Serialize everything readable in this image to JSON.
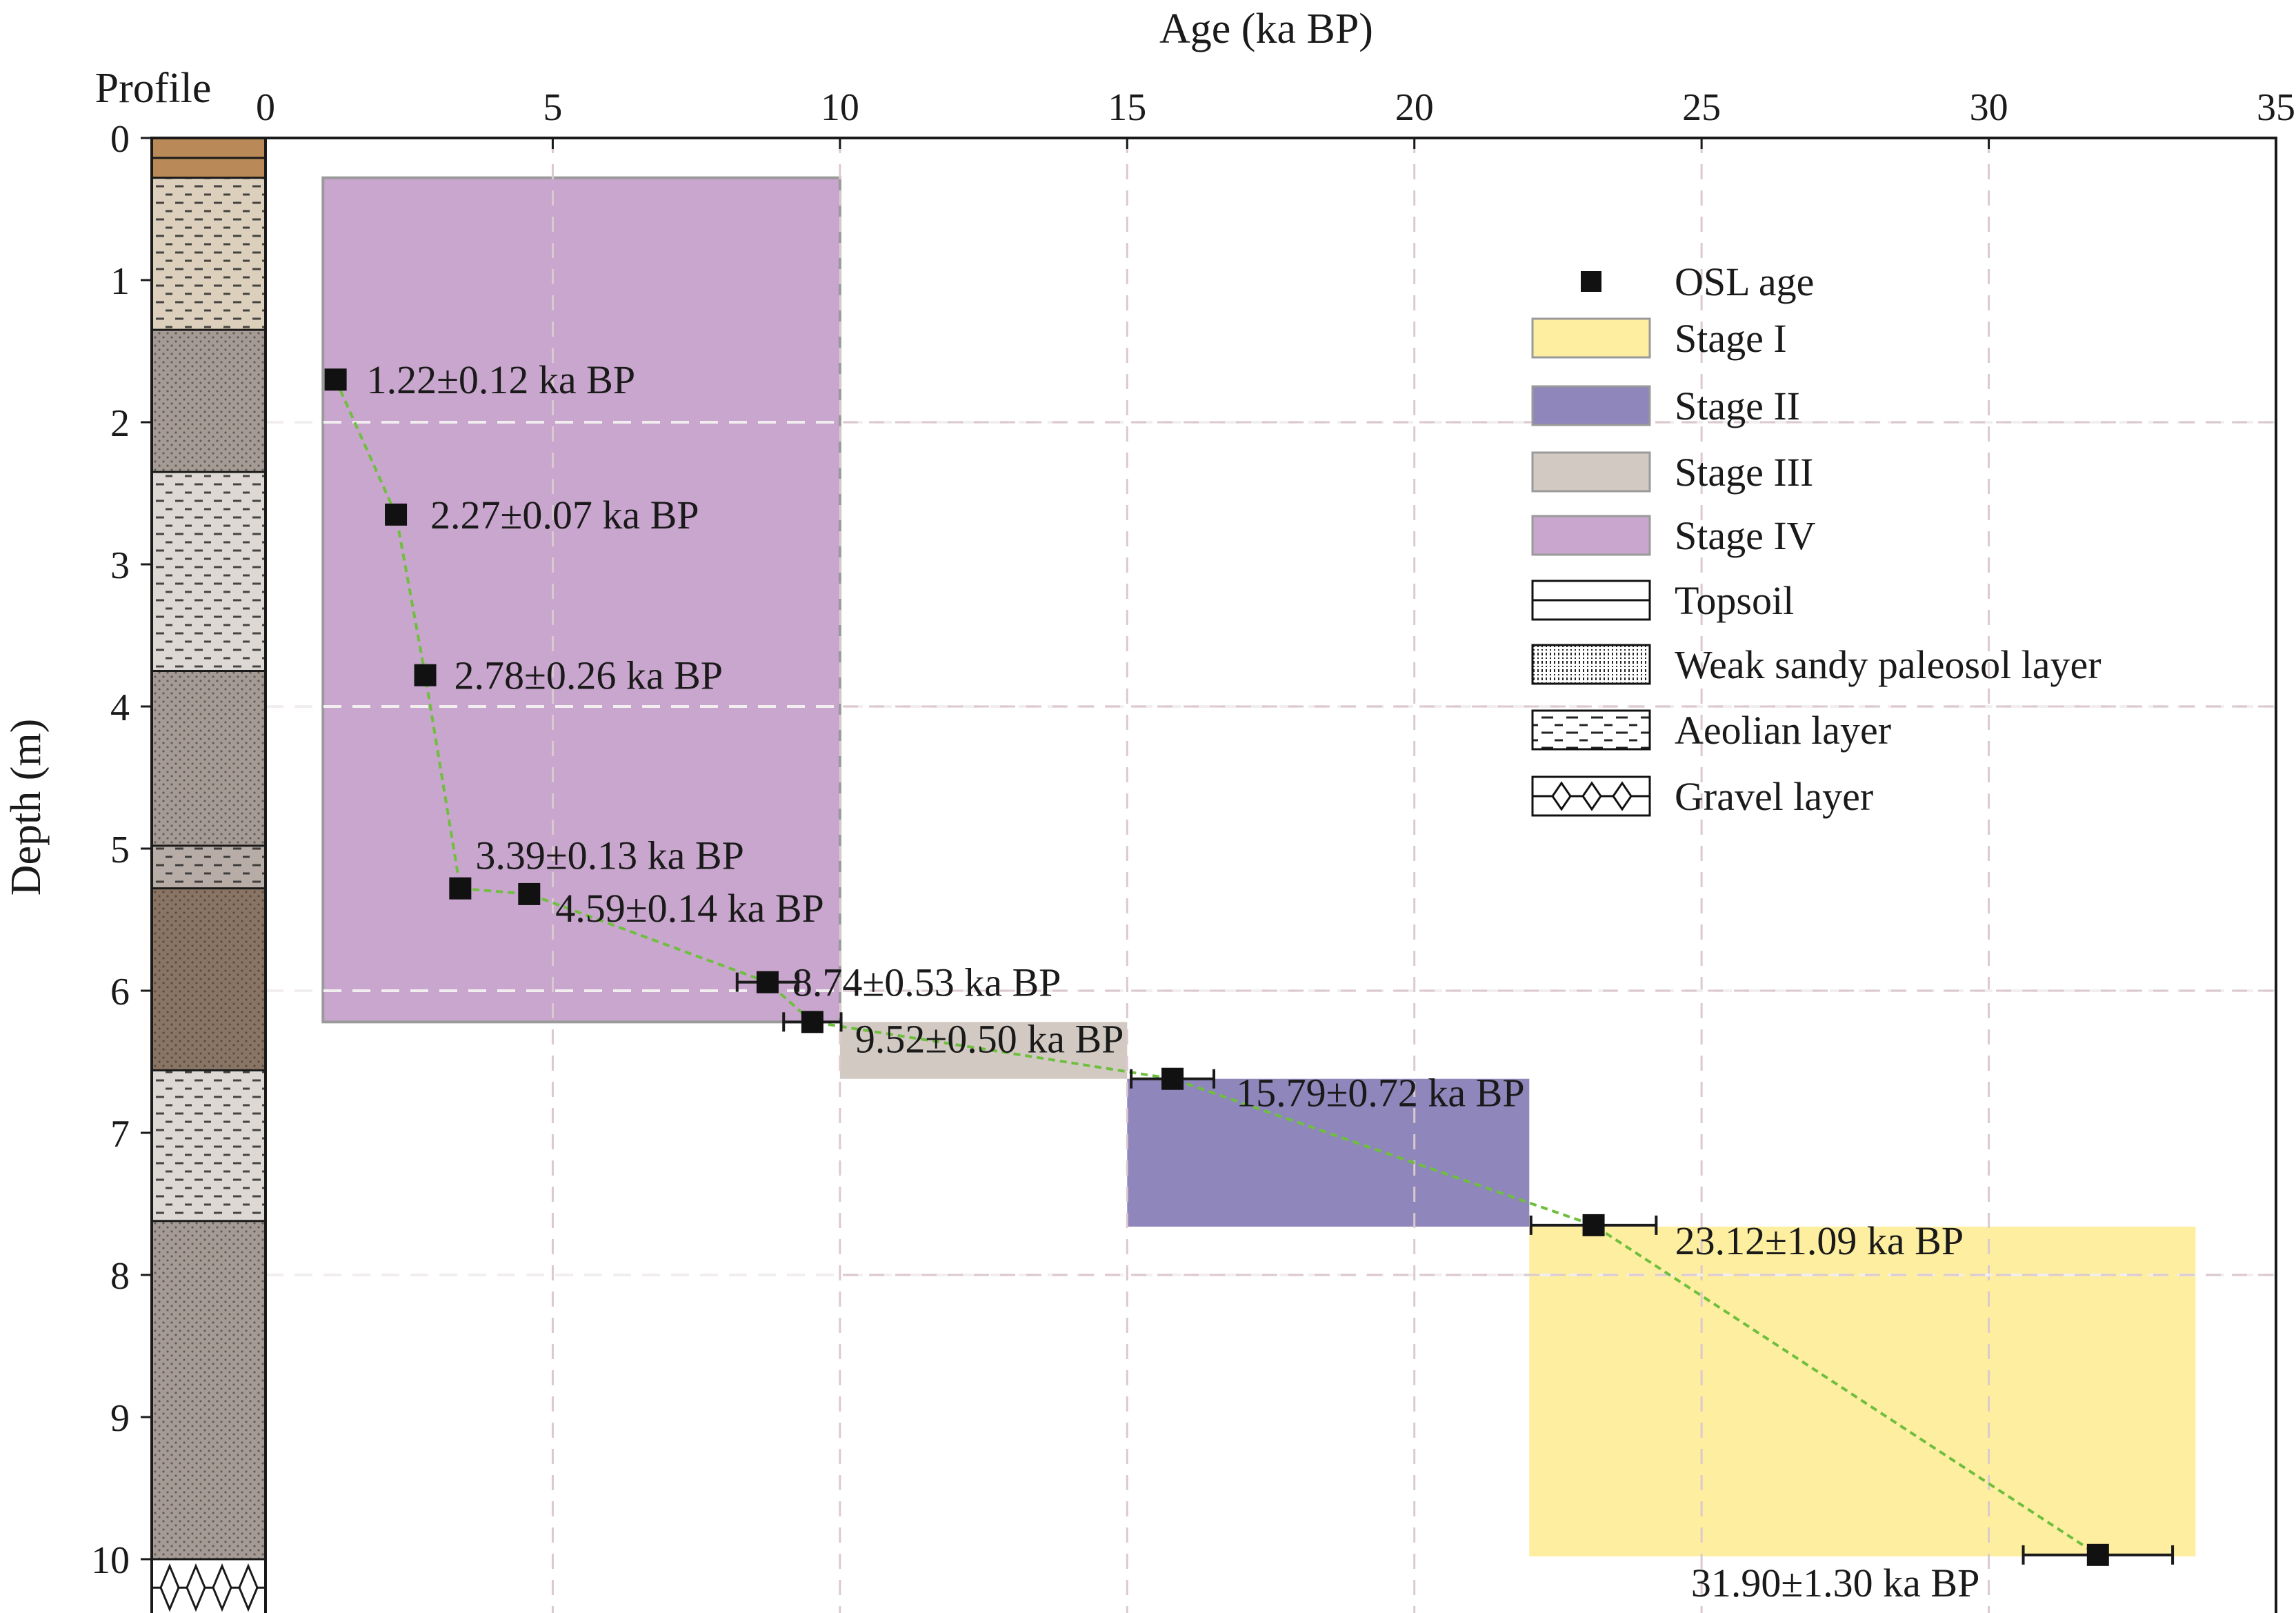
{
  "chart_data": {
    "type": "scatter",
    "title": "",
    "xlabel": "Age (ka BP)",
    "ylabel": "Depth (m)",
    "profile_label": "Profile",
    "xlim": [
      0,
      35
    ],
    "ylim": [
      0,
      10.4
    ],
    "xticks": [
      0,
      5,
      10,
      15,
      20,
      25,
      30,
      35
    ],
    "yticks": [
      0,
      1,
      2,
      3,
      4,
      5,
      6,
      7,
      8,
      9,
      10
    ],
    "grid": true,
    "legend_position": "top-right",
    "series": [
      {
        "name": "OSL age",
        "color": "#111111",
        "line_color": "#6fbf3f",
        "points": [
          {
            "age": 1.22,
            "err": 0.12,
            "depth": 1.7,
            "label": "1.22±0.12 ka BP"
          },
          {
            "age": 2.27,
            "err": 0.07,
            "depth": 2.65,
            "label": "2.27±0.07 ka BP"
          },
          {
            "age": 2.78,
            "err": 0.26,
            "depth": 3.78,
            "label": "2.78±0.26 ka BP"
          },
          {
            "age": 3.39,
            "err": 0.13,
            "depth": 5.28,
            "label": "3.39±0.13 ka BP"
          },
          {
            "age": 4.59,
            "err": 0.14,
            "depth": 5.32,
            "label": "4.59±0.14 ka BP"
          },
          {
            "age": 8.74,
            "err": 0.53,
            "depth": 5.94,
            "label": "8.74±0.53 ka BP"
          },
          {
            "age": 9.52,
            "err": 0.5,
            "depth": 6.22,
            "label": "9.52±0.50 ka BP"
          },
          {
            "age": 15.79,
            "err": 0.72,
            "depth": 6.62,
            "label": "15.79±0.72 ka BP"
          },
          {
            "age": 23.12,
            "err": 1.09,
            "depth": 7.65,
            "label": "23.12±1.09 ka BP"
          },
          {
            "age": 31.9,
            "err": 1.3,
            "depth": 9.97,
            "label": "31.90±1.30 ka BP"
          }
        ]
      }
    ],
    "stages": [
      {
        "name": "Stage I",
        "color": "#fdeea0",
        "age_from": 22.0,
        "age_to": 33.6,
        "depth_top": 7.66,
        "depth_bottom": 9.98
      },
      {
        "name": "Stage II",
        "color": "#8f86bb",
        "age_from": 15.0,
        "age_to": 22.0,
        "depth_top": 6.62,
        "depth_bottom": 7.66
      },
      {
        "name": "Stage III",
        "color": "#d2c9c3",
        "age_from": 10.0,
        "age_to": 15.0,
        "depth_top": 6.22,
        "depth_bottom": 6.62
      },
      {
        "name": "Stage IV",
        "color": "#c9a6cd",
        "age_from": 1.0,
        "age_to": 10.0,
        "depth_top": 0.28,
        "depth_bottom": 6.22
      }
    ],
    "profile_layers": [
      {
        "type": "topsoil",
        "top": 0.0,
        "bottom": 0.28,
        "color": "#b98a57"
      },
      {
        "type": "aeolian",
        "top": 0.28,
        "bottom": 1.35,
        "color": "#dccfbb"
      },
      {
        "type": "paleosol",
        "top": 1.35,
        "bottom": 2.35,
        "color": "#a69b94"
      },
      {
        "type": "aeolian",
        "top": 2.35,
        "bottom": 3.75,
        "color": "#ddd8d3"
      },
      {
        "type": "paleosol",
        "top": 3.75,
        "bottom": 4.98,
        "color": "#a69b94"
      },
      {
        "type": "aeolian",
        "top": 4.98,
        "bottom": 5.28,
        "color": "#b8aca6"
      },
      {
        "type": "paleosol",
        "top": 5.28,
        "bottom": 6.56,
        "color": "#8a7565"
      },
      {
        "type": "aeolian",
        "top": 6.56,
        "bottom": 7.62,
        "color": "#ddd8d3"
      },
      {
        "type": "paleosol",
        "top": 7.62,
        "bottom": 10.0,
        "color": "#a69b94"
      },
      {
        "type": "gravel",
        "top": 10.0,
        "bottom": 10.4,
        "color": "#ffffff"
      }
    ]
  },
  "legend": {
    "items": [
      {
        "label": "OSL age",
        "kind": "marker"
      },
      {
        "label": "Stage I",
        "kind": "fill",
        "color": "#fdeea0"
      },
      {
        "label": "Stage II",
        "kind": "fill",
        "color": "#8f86bb"
      },
      {
        "label": "Stage III",
        "kind": "fill",
        "color": "#d2c9c3"
      },
      {
        "label": "Stage IV",
        "kind": "fill",
        "color": "#c9a6cd"
      },
      {
        "label": "Topsoil",
        "kind": "pattern",
        "pattern": "topsoil"
      },
      {
        "label": "Weak sandy paleosol layer",
        "kind": "pattern",
        "pattern": "paleosol"
      },
      {
        "label": "Aeolian layer",
        "kind": "pattern",
        "pattern": "aeolian"
      },
      {
        "label": "Gravel layer",
        "kind": "pattern",
        "pattern": "gravel"
      }
    ]
  }
}
